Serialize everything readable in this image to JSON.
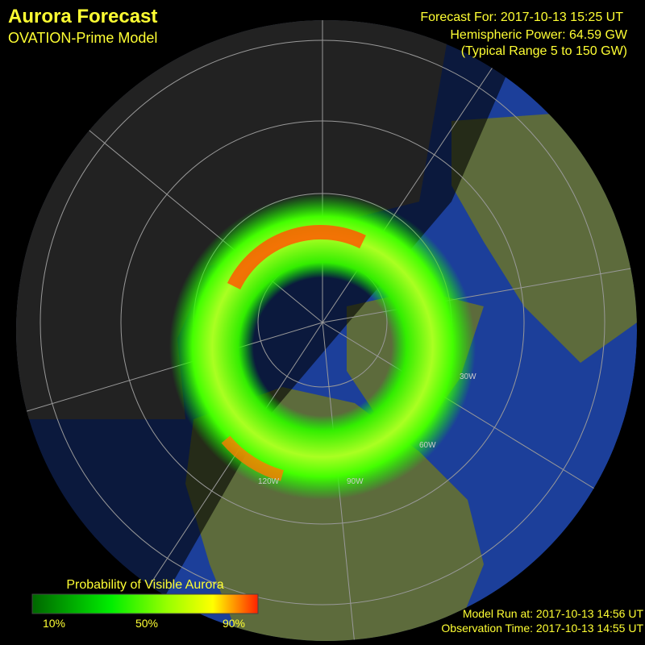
{
  "header": {
    "title": "Aurora Forecast",
    "subtitle": "OVATION-Prime Model"
  },
  "info": {
    "forecast": "Forecast For: 2017-10-13 15:25 UT",
    "power": "Hemispheric Power: 64.59 GW",
    "range": "(Typical Range 5 to 150 GW)"
  },
  "map": {
    "longitude_labels": [
      "30W",
      "60W",
      "90W",
      "120W"
    ]
  },
  "legend": {
    "title": "Probability of Visible Aurora",
    "labels": [
      "10%",
      "50%",
      "90%"
    ]
  },
  "footer": {
    "model_run": "Model Run at: 2017-10-13 14:56 UT",
    "observation": "Observation Time: 2017-10-13 14:55 UT"
  }
}
